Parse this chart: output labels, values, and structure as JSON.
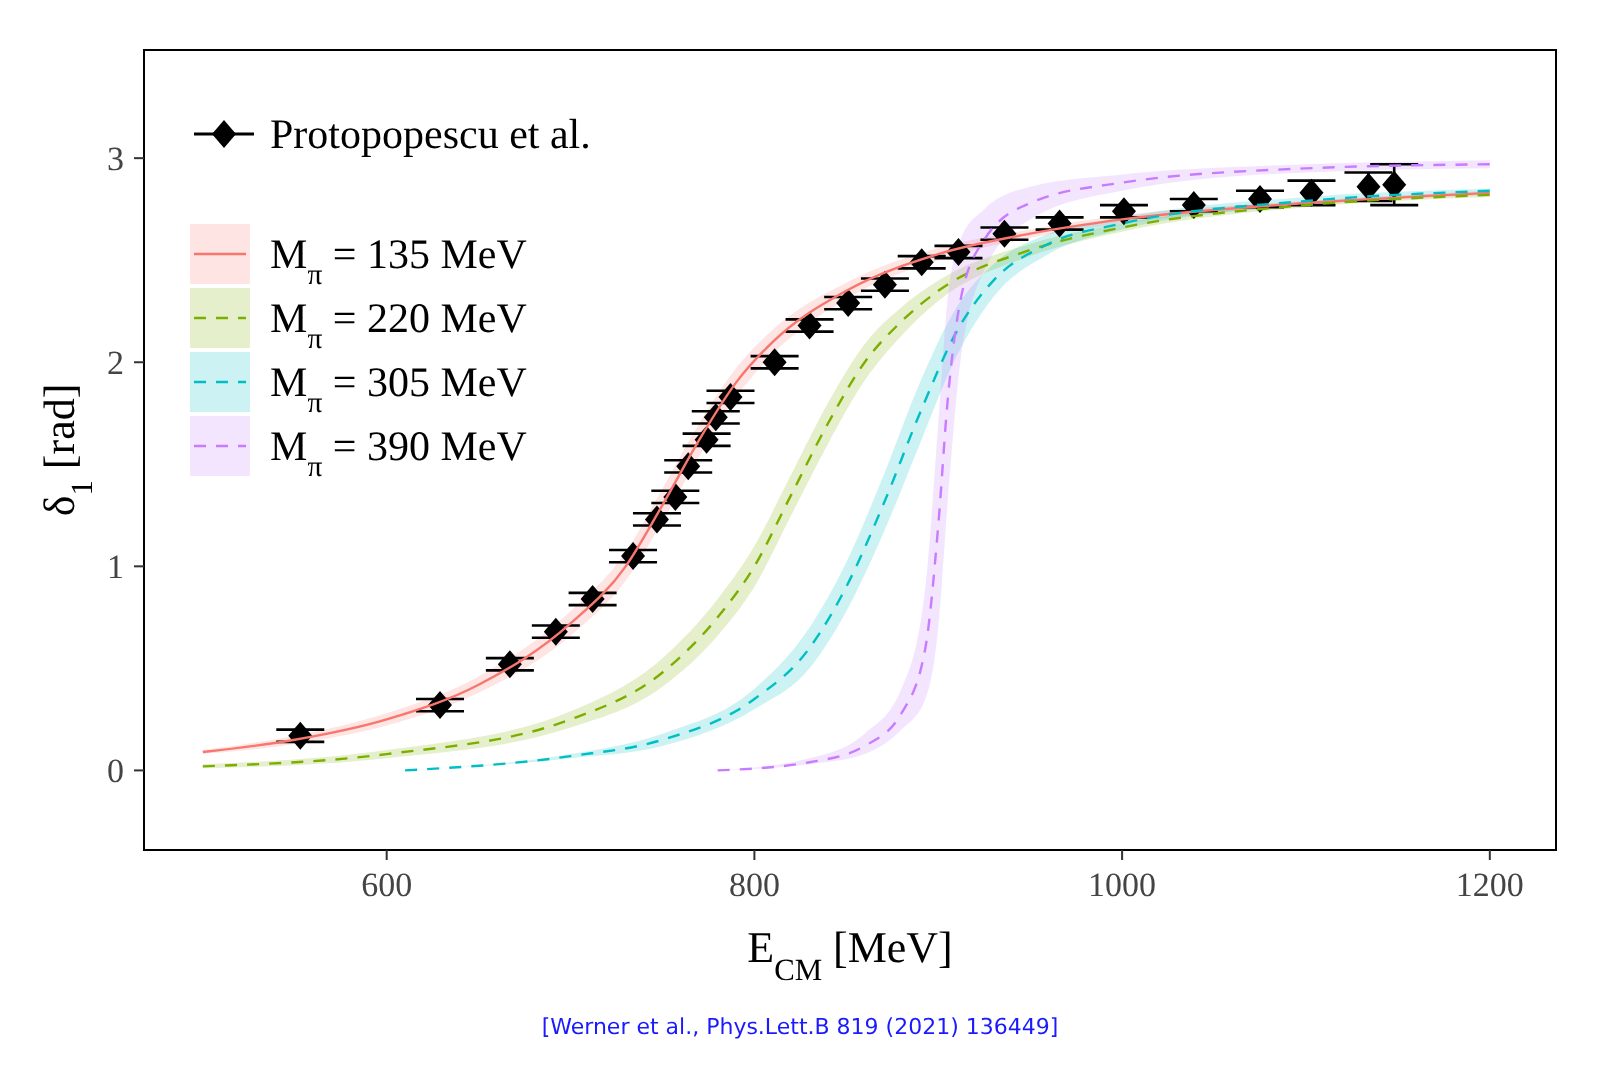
{
  "chart_data": {
    "type": "line",
    "xlabel": "E$_{CM}$ [MeV]",
    "ylabel": "δ$_{1}$ [rad]",
    "xlim": [
      468,
      1236
    ],
    "ylim": [
      -0.39,
      3.53
    ],
    "xticks": [
      600,
      800,
      1000,
      1200
    ],
    "yticks": [
      0,
      1,
      2,
      3
    ],
    "grid": false,
    "legend": "top left",
    "annotations": [
      "[Werner et al., Phys.Lett.B 819 (2021) 136449]"
    ],
    "series": [
      {
        "name": "Protopopescu et al.",
        "type": "scatter",
        "color": "#000000",
        "marker": "diamond",
        "x": [
          553,
          629,
          667,
          692,
          712,
          734,
          747,
          757,
          764,
          774,
          779,
          787,
          811,
          830,
          851,
          871,
          891,
          911,
          936,
          966,
          1001,
          1039,
          1075,
          1103,
          1134,
          1148
        ],
        "values": [
          0.17,
          0.32,
          0.52,
          0.68,
          0.84,
          1.05,
          1.23,
          1.34,
          1.49,
          1.62,
          1.73,
          1.83,
          2.0,
          2.18,
          2.29,
          2.38,
          2.49,
          2.54,
          2.63,
          2.68,
          2.74,
          2.77,
          2.8,
          2.83,
          2.86,
          2.87
        ],
        "errors": [
          0.03,
          0.03,
          0.03,
          0.03,
          0.03,
          0.03,
          0.03,
          0.03,
          0.03,
          0.03,
          0.03,
          0.03,
          0.03,
          0.03,
          0.03,
          0.03,
          0.03,
          0.03,
          0.03,
          0.03,
          0.03,
          0.03,
          0.04,
          0.06,
          0.07,
          0.1
        ]
      },
      {
        "name": "M$_{π}$ = 135 MeV",
        "color": "#f8766d",
        "line_style": "solid",
        "x": [
          500,
          550,
          600,
          650,
          700,
          730,
          750,
          770,
          790,
          810,
          850,
          900,
          950,
          1000,
          1100,
          1200
        ],
        "values": [
          0.09,
          0.15,
          0.25,
          0.42,
          0.72,
          1.0,
          1.3,
          1.62,
          1.9,
          2.1,
          2.35,
          2.53,
          2.63,
          2.7,
          2.78,
          2.83
        ],
        "lower": [
          0.08,
          0.13,
          0.22,
          0.38,
          0.66,
          0.93,
          1.22,
          1.54,
          1.83,
          2.04,
          2.31,
          2.5,
          2.61,
          2.68,
          2.77,
          2.82
        ],
        "upper": [
          0.1,
          0.17,
          0.28,
          0.46,
          0.78,
          1.07,
          1.38,
          1.7,
          1.97,
          2.16,
          2.39,
          2.56,
          2.65,
          2.72,
          2.79,
          2.84
        ]
      },
      {
        "name": "M$_{π}$ = 220 MeV",
        "color": "#7cae00",
        "line_style": "dashed",
        "x": [
          500,
          600,
          700,
          750,
          780,
          800,
          820,
          840,
          860,
          880,
          900,
          950,
          1000,
          1100,
          1200
        ],
        "values": [
          0.02,
          0.08,
          0.25,
          0.48,
          0.75,
          1.0,
          1.35,
          1.7,
          2.0,
          2.2,
          2.35,
          2.55,
          2.66,
          2.77,
          2.82
        ],
        "lower": [
          0.01,
          0.06,
          0.21,
          0.41,
          0.66,
          0.9,
          1.25,
          1.6,
          1.91,
          2.13,
          2.3,
          2.52,
          2.64,
          2.76,
          2.81
        ],
        "upper": [
          0.03,
          0.1,
          0.29,
          0.55,
          0.84,
          1.1,
          1.45,
          1.8,
          2.09,
          2.27,
          2.4,
          2.58,
          2.68,
          2.78,
          2.83
        ]
      },
      {
        "name": "M$_{π}$ = 305 MeV",
        "color": "#00bfc4",
        "line_style": "dashed",
        "x": [
          610,
          700,
          750,
          800,
          830,
          850,
          870,
          890,
          910,
          930,
          960,
          1000,
          1100,
          1200
        ],
        "values": [
          0.0,
          0.07,
          0.15,
          0.35,
          0.6,
          0.9,
          1.3,
          1.75,
          2.15,
          2.4,
          2.58,
          2.68,
          2.79,
          2.84
        ],
        "lower": [
          0.0,
          0.06,
          0.12,
          0.3,
          0.5,
          0.78,
          1.16,
          1.6,
          2.03,
          2.32,
          2.53,
          2.65,
          2.77,
          2.83
        ],
        "upper": [
          0.0,
          0.08,
          0.18,
          0.4,
          0.7,
          1.02,
          1.44,
          1.9,
          2.27,
          2.48,
          2.63,
          2.71,
          2.81,
          2.85
        ]
      },
      {
        "name": "M$_{π}$ = 390 MeV",
        "color": "#c77cff",
        "line_style": "dashed",
        "x": [
          780,
          830,
          860,
          880,
          893,
          900,
          905,
          912,
          925,
          950,
          1000,
          1100,
          1200
        ],
        "values": [
          0.0,
          0.04,
          0.12,
          0.28,
          0.6,
          1.2,
          1.8,
          2.3,
          2.6,
          2.78,
          2.88,
          2.95,
          2.97
        ],
        "lower": [
          0.0,
          0.03,
          0.08,
          0.2,
          0.35,
          0.7,
          1.3,
          2.0,
          2.45,
          2.7,
          2.84,
          2.93,
          2.95
        ],
        "upper": [
          0.0,
          0.06,
          0.18,
          0.4,
          0.9,
          1.7,
          2.3,
          2.6,
          2.75,
          2.86,
          2.92,
          2.97,
          2.99
        ]
      }
    ]
  }
}
